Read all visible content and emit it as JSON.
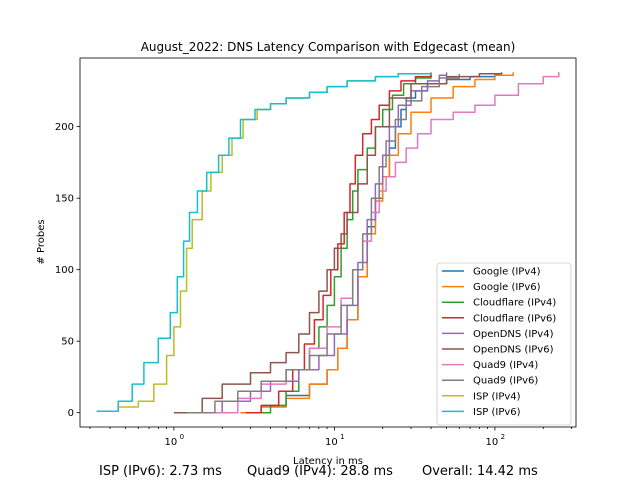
{
  "chart_data": {
    "type": "line",
    "title": "August_2022: DNS Latency Comparison with Edgecast (mean)",
    "xlabel": "Latency in ms",
    "ylabel": "# Probes",
    "xscale": "log",
    "xlim": [
      0.26,
      320
    ],
    "ylim": [
      -10,
      248
    ],
    "x_ticks": [
      {
        "value": 1,
        "label": "10^0"
      },
      {
        "value": 10,
        "label": "10^1"
      },
      {
        "value": 100,
        "label": "10^2"
      }
    ],
    "y_ticks": [
      0,
      50,
      100,
      150,
      200
    ],
    "grid": false,
    "legend_position": "lower-right",
    "series": [
      {
        "name": "Google (IPv4)",
        "color": "#1f77b4",
        "x": [
          2.6,
          3.5,
          5.0,
          7.0,
          9.0,
          10.5,
          12.0,
          14.0,
          16.0,
          18.0,
          20.0,
          22.0,
          24.0,
          26.0,
          28.0,
          32.0,
          38.0,
          50.0,
          70.0,
          100.0
        ],
        "y": [
          0,
          5,
          12,
          20,
          30,
          45,
          65,
          95,
          130,
          150,
          165,
          185,
          200,
          212,
          220,
          225,
          230,
          233,
          235,
          237
        ]
      },
      {
        "name": "Google (IPv6)",
        "color": "#ff7f0e",
        "x": [
          2.6,
          3.5,
          5.0,
          7.0,
          9.0,
          10.5,
          12.0,
          14.0,
          16.0,
          18.0,
          20.0,
          22.0,
          25.0,
          30.0,
          40.0,
          55.0,
          75.0,
          100.0,
          130.0
        ],
        "y": [
          0,
          4,
          10,
          20,
          30,
          45,
          65,
          95,
          125,
          148,
          165,
          180,
          195,
          210,
          220,
          228,
          233,
          236,
          238
        ]
      },
      {
        "name": "Cloudflare (IPv4)",
        "color": "#2ca02c",
        "x": [
          3.0,
          4.0,
          5.0,
          6.0,
          7.0,
          8.0,
          9.0,
          10.0,
          11.0,
          12.0,
          13.0,
          14.0,
          16.0,
          18.0,
          20.0,
          23.0,
          27.0,
          32.0,
          40.0
        ],
        "y": [
          0,
          5,
          15,
          30,
          45,
          60,
          75,
          95,
          115,
          135,
          155,
          170,
          185,
          200,
          212,
          222,
          230,
          234,
          236
        ]
      },
      {
        "name": "Cloudflare (IPv6)",
        "color": "#d62728",
        "x": [
          2.8,
          3.5,
          4.5,
          5.5,
          6.5,
          7.5,
          8.5,
          9.5,
          10.5,
          11.5,
          12.5,
          13.5,
          15.0,
          17.0,
          19.0,
          22.0,
          26.0,
          32.0,
          40.0
        ],
        "y": [
          0,
          5,
          15,
          30,
          48,
          65,
          82,
          100,
          118,
          140,
          160,
          180,
          195,
          205,
          215,
          225,
          232,
          235,
          237
        ]
      },
      {
        "name": "OpenDNS (IPv4)",
        "color": "#9467bd",
        "x": [
          1.3,
          2.0,
          3.0,
          4.0,
          6.0,
          8.0,
          10.0,
          12.0,
          14.0,
          16.0,
          18.0,
          20.0,
          22.0,
          25.0,
          30.0,
          38.0,
          45.0,
          50.0
        ],
        "y": [
          0,
          8,
          15,
          22,
          30,
          40,
          55,
          75,
          105,
          135,
          160,
          180,
          200,
          215,
          225,
          232,
          236,
          238
        ]
      },
      {
        "name": "OpenDNS (IPv6)",
        "color": "#8c564b",
        "x": [
          1.0,
          1.5,
          2.0,
          3.0,
          4.0,
          5.0,
          6.0,
          7.0,
          8.0,
          9.0,
          10.0,
          11.0,
          12.0,
          14.0,
          16.0,
          18.0,
          22.0,
          30.0,
          50.0,
          80.0,
          110.0
        ],
        "y": [
          0,
          10,
          20,
          28,
          35,
          42,
          55,
          70,
          85,
          100,
          115,
          125,
          140,
          160,
          180,
          200,
          220,
          230,
          235,
          237,
          238
        ]
      },
      {
        "name": "Quad9 (IPv4)",
        "color": "#e377c2",
        "x": [
          1.6,
          2.5,
          3.5,
          5.0,
          7.0,
          9.0,
          11.0,
          13.0,
          15.0,
          17.0,
          19.0,
          21.0,
          24.0,
          28.0,
          33.0,
          40.0,
          55.0,
          75.0,
          100.0,
          140.0,
          200.0,
          250.0
        ],
        "y": [
          0,
          10,
          20,
          30,
          45,
          60,
          80,
          100,
          120,
          140,
          155,
          165,
          175,
          185,
          195,
          205,
          210,
          215,
          222,
          230,
          235,
          238
        ]
      },
      {
        "name": "Quad9 (IPv6)",
        "color": "#7f7f7f",
        "x": [
          1.2,
          1.8,
          2.5,
          3.5,
          5.0,
          7.0,
          9.0,
          11.0,
          13.0,
          15.0,
          17.0,
          19.0,
          21.0,
          24.0,
          28.0,
          35.0,
          45.0,
          60.0
        ],
        "y": [
          0,
          8,
          15,
          22,
          30,
          40,
          55,
          75,
          100,
          125,
          150,
          172,
          190,
          205,
          218,
          228,
          234,
          237
        ]
      },
      {
        "name": "ISP (IPv4)",
        "color": "#bcbd22",
        "x": [
          0.33,
          0.45,
          0.6,
          0.75,
          0.9,
          1.0,
          1.1,
          1.2,
          1.3,
          1.5,
          1.7,
          2.0,
          2.3,
          2.7,
          3.3,
          4.0,
          5.0,
          7.0,
          9.0,
          12.0,
          18.0,
          25.0,
          40.0
        ],
        "y": [
          1,
          4,
          8,
          20,
          40,
          60,
          85,
          115,
          135,
          155,
          168,
          180,
          192,
          205,
          212,
          216,
          220,
          224,
          228,
          232,
          235,
          237,
          238
        ]
      },
      {
        "name": "ISP (IPv6)",
        "color": "#17becf",
        "x": [
          0.33,
          0.45,
          0.55,
          0.65,
          0.8,
          0.95,
          1.05,
          1.15,
          1.25,
          1.4,
          1.6,
          1.9,
          2.2,
          2.6,
          3.2,
          4.0,
          5.0,
          7.0,
          9.0,
          12.0,
          18.0,
          25.0,
          40.0
        ],
        "y": [
          1,
          8,
          20,
          35,
          52,
          70,
          95,
          120,
          140,
          155,
          168,
          180,
          192,
          205,
          212,
          216,
          220,
          224,
          228,
          232,
          235,
          237,
          238
        ]
      }
    ]
  },
  "footer": {
    "isp_ipv6": "ISP (IPv6): 2.73 ms",
    "quad9_ipv4": "Quad9 (IPv4): 28.8 ms",
    "overall": "Overall: 14.42 ms"
  }
}
